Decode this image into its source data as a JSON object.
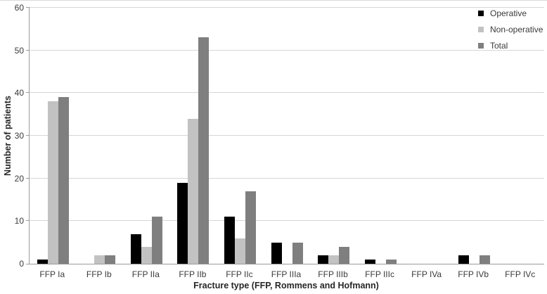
{
  "chart_data": {
    "type": "bar",
    "title": "",
    "categories": [
      "FFP Ia",
      "FFP Ib",
      "FFP IIa",
      "FFP IIb",
      "FFP IIc",
      "FFP IIIa",
      "FFP IIIb",
      "FFP IIIc",
      "FFP IVa",
      "FFP IVb",
      "FFP IVc"
    ],
    "series": [
      {
        "name": "Operative",
        "color": "#000000",
        "values": [
          1,
          0,
          7,
          19,
          11,
          5,
          2,
          1,
          0,
          2,
          0
        ]
      },
      {
        "name": "Non-operative",
        "color": "#c2c2c2",
        "values": [
          38,
          2,
          4,
          34,
          6,
          0,
          2,
          0,
          0,
          0,
          0
        ]
      },
      {
        "name": "Total",
        "color": "#7f7f7f",
        "values": [
          39,
          2,
          11,
          53,
          17,
          5,
          4,
          1,
          0,
          2,
          0
        ]
      }
    ],
    "xlabel": "Fracture type (FFP, Rommens and Hofmann)",
    "ylabel": "Number of patients",
    "ylim": [
      0,
      60
    ],
    "ytick_step": 10,
    "ytick_labels": [
      "0",
      "10",
      "20",
      "30",
      "40",
      "50",
      "60"
    ],
    "grid": true,
    "legend_position": "top-right"
  },
  "colors": {
    "gridline": "#d6d6d6",
    "axis": "#9b9b9b",
    "label_text": "#3a3a3a",
    "title_text": "#262626",
    "background": "#ffffff"
  }
}
